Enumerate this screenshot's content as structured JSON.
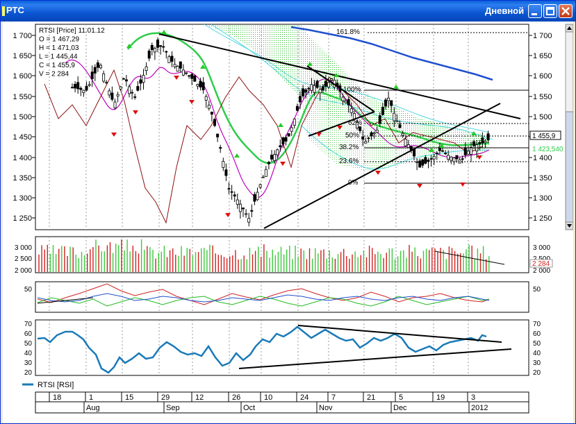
{
  "window": {
    "title": "РТС",
    "period": "Дневной"
  },
  "colors": {
    "titlebar": "#0a55d0",
    "candle": "#000000",
    "ma_fast": "#c000c0",
    "ma_green": "#2ecc4a",
    "ma_blue": "#1f4fcf",
    "cloud_cyan": "#4fd6e0",
    "cloud_green": "#22bb22",
    "trend": "#000000",
    "rsi": "#1a7ab8",
    "vol_up": "#3cc83c",
    "vol_down": "#d02020",
    "dark_red": "#8b1010"
  },
  "price_panel": {
    "info_lines": [
      "RTSI [Price] 11.01.12",
      "O = 1 467,29",
      "H = 1 471,03",
      "L = 1 445,44",
      "C = 1 455,9",
      "V = 2 284"
    ],
    "ticks_left": [
      "1 700",
      "1 650",
      "1 600",
      "1 550",
      "1 500",
      "1 450",
      "1 400",
      "1 350",
      "1 300",
      "1 250"
    ],
    "ticks_right": [
      "1 700",
      "1 650",
      "1 600",
      "1 550",
      "1 500",
      "1 450",
      "1 400",
      "1 350",
      "1 300",
      "1 250"
    ],
    "last_price_label": "1 455,9",
    "ma_label": "1 423,540",
    "fib_labels": [
      "161.8%",
      "100%",
      "62%",
      "50%",
      "38.2%",
      "23.6%",
      "0%"
    ]
  },
  "volume_panel": {
    "ticks_left": [
      "3 000",
      "2 500",
      "2 000"
    ],
    "ticks_right": [
      "3 000",
      "2 500",
      "2 000"
    ],
    "last_label": "2 284"
  },
  "osc_panel": {
    "tick_left": "50",
    "tick_right": "50"
  },
  "rsi_panel": {
    "ticks_left": [
      "70",
      "60",
      "50",
      "40",
      "30",
      "20"
    ],
    "ticks_right": [
      "70",
      "60",
      "50",
      "40",
      "30",
      "20"
    ],
    "legend": "RTSI [RSI]"
  },
  "time_axis": {
    "days": [
      "18",
      "1",
      "15",
      "29",
      "12",
      "26",
      "10",
      "24",
      "7",
      "21",
      "5",
      "19",
      "3"
    ],
    "months": [
      "Aug",
      "Sep",
      "Oct",
      "Nov",
      "Dec",
      "2012"
    ]
  }
}
